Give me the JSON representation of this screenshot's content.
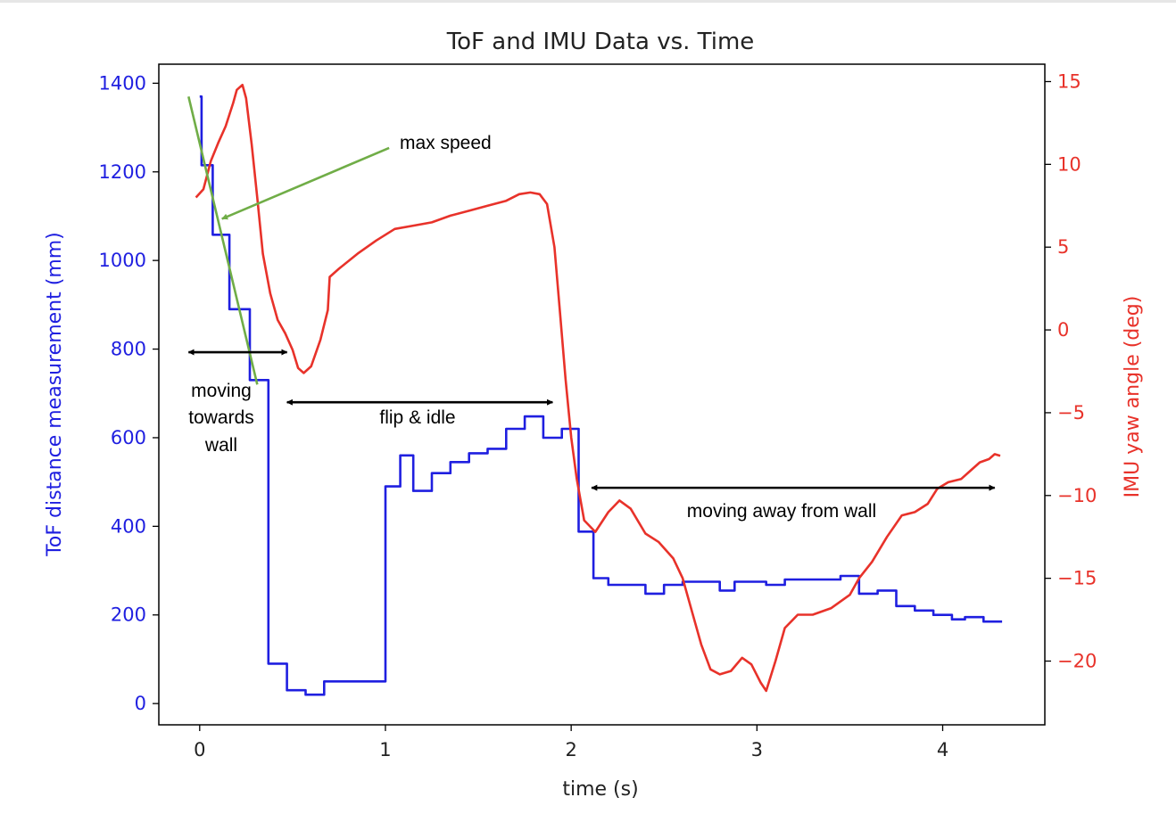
{
  "chart_data": {
    "type": "line",
    "title": "ToF and IMU Data vs. Time",
    "xlabel": "time (s)",
    "ylabel": "ToF distance measurement (mm)",
    "ylabel_right": "IMU yaw angle (deg)",
    "xlim": [
      -0.22,
      4.55
    ],
    "ylim": [
      -48,
      1443
    ],
    "ylim_right": [
      -23.85,
      16.05
    ],
    "x_ticks": [
      {
        "value": 0,
        "label": "0"
      },
      {
        "value": 1,
        "label": "1"
      },
      {
        "value": 2,
        "label": "2"
      },
      {
        "value": 3,
        "label": "3"
      },
      {
        "value": 4,
        "label": "4"
      }
    ],
    "y_ticks": [
      {
        "value": 0,
        "label": "0"
      },
      {
        "value": 200,
        "label": "200"
      },
      {
        "value": 400,
        "label": "400"
      },
      {
        "value": 600,
        "label": "600"
      },
      {
        "value": 800,
        "label": "800"
      },
      {
        "value": 1000,
        "label": "1000"
      },
      {
        "value": 1200,
        "label": "1200"
      },
      {
        "value": 1400,
        "label": "1400"
      }
    ],
    "y_ticks_right": [
      {
        "value": 15,
        "label": "15"
      },
      {
        "value": 10,
        "label": "10"
      },
      {
        "value": 5,
        "label": "5"
      },
      {
        "value": 0,
        "label": "0"
      },
      {
        "value": -5,
        "label": "−5"
      },
      {
        "value": -10,
        "label": "−10"
      },
      {
        "value": -15,
        "label": "−15"
      },
      {
        "value": -20,
        "label": "−20"
      }
    ],
    "grid": false,
    "series": [
      {
        "axis": "left",
        "color": "#1f1fe0",
        "style": "step",
        "points": [
          [
            0,
            1370
          ],
          [
            0.01,
            1215
          ],
          [
            0.07,
            1058
          ],
          [
            0.16,
            890
          ],
          [
            0.27,
            730
          ],
          [
            0.37,
            90
          ],
          [
            0.47,
            30
          ],
          [
            0.57,
            20
          ],
          [
            0.67,
            50
          ],
          [
            0.7,
            50
          ],
          [
            1.0,
            490
          ],
          [
            1.08,
            560
          ],
          [
            1.15,
            480
          ],
          [
            1.25,
            520
          ],
          [
            1.35,
            545
          ],
          [
            1.45,
            565
          ],
          [
            1.55,
            575
          ],
          [
            1.65,
            620
          ],
          [
            1.75,
            648
          ],
          [
            1.85,
            600
          ],
          [
            1.95,
            620
          ],
          [
            2.04,
            388
          ],
          [
            2.12,
            283
          ],
          [
            2.2,
            268
          ],
          [
            2.4,
            248
          ],
          [
            2.5,
            268
          ],
          [
            2.6,
            275
          ],
          [
            2.8,
            255
          ],
          [
            2.88,
            275
          ],
          [
            3.05,
            268
          ],
          [
            3.15,
            280
          ],
          [
            3.45,
            288
          ],
          [
            3.55,
            248
          ],
          [
            3.65,
            255
          ],
          [
            3.75,
            220
          ],
          [
            3.85,
            210
          ],
          [
            3.95,
            200
          ],
          [
            4.05,
            190
          ],
          [
            4.12,
            195
          ],
          [
            4.22,
            185
          ],
          [
            4.32,
            185
          ]
        ]
      },
      {
        "axis": "right",
        "color": "#e8322a",
        "style": "line",
        "points": [
          [
            -0.02,
            8.0
          ],
          [
            0.02,
            8.5
          ],
          [
            0.06,
            10.2
          ],
          [
            0.1,
            11.3
          ],
          [
            0.14,
            12.3
          ],
          [
            0.18,
            13.7
          ],
          [
            0.2,
            14.5
          ],
          [
            0.23,
            14.8
          ],
          [
            0.25,
            14.0
          ],
          [
            0.28,
            11.2
          ],
          [
            0.31,
            8.0
          ],
          [
            0.34,
            4.6
          ],
          [
            0.38,
            2.2
          ],
          [
            0.42,
            0.6
          ],
          [
            0.46,
            -0.2
          ],
          [
            0.5,
            -1.2
          ],
          [
            0.53,
            -2.3
          ],
          [
            0.56,
            -2.6
          ],
          [
            0.6,
            -2.2
          ],
          [
            0.65,
            -0.6
          ],
          [
            0.69,
            1.2
          ],
          [
            0.7,
            3.2
          ],
          [
            0.75,
            3.7
          ],
          [
            0.85,
            4.6
          ],
          [
            0.95,
            5.4
          ],
          [
            1.05,
            6.1
          ],
          [
            1.15,
            6.3
          ],
          [
            1.25,
            6.5
          ],
          [
            1.35,
            6.9
          ],
          [
            1.45,
            7.2
          ],
          [
            1.55,
            7.5
          ],
          [
            1.65,
            7.8
          ],
          [
            1.72,
            8.2
          ],
          [
            1.78,
            8.3
          ],
          [
            1.83,
            8.2
          ],
          [
            1.87,
            7.6
          ],
          [
            1.91,
            5.0
          ],
          [
            1.94,
            1.0
          ],
          [
            1.97,
            -3.0
          ],
          [
            2.0,
            -6.5
          ],
          [
            2.03,
            -9.0
          ],
          [
            2.07,
            -11.5
          ],
          [
            2.13,
            -12.2
          ],
          [
            2.2,
            -11.0
          ],
          [
            2.26,
            -10.3
          ],
          [
            2.32,
            -10.8
          ],
          [
            2.4,
            -12.3
          ],
          [
            2.47,
            -12.8
          ],
          [
            2.55,
            -13.8
          ],
          [
            2.6,
            -15.0
          ],
          [
            2.65,
            -17.0
          ],
          [
            2.7,
            -19.0
          ],
          [
            2.75,
            -20.5
          ],
          [
            2.8,
            -20.8
          ],
          [
            2.86,
            -20.6
          ],
          [
            2.92,
            -19.8
          ],
          [
            2.97,
            -20.2
          ],
          [
            3.02,
            -21.3
          ],
          [
            3.05,
            -21.8
          ],
          [
            3.1,
            -20.0
          ],
          [
            3.15,
            -18.0
          ],
          [
            3.22,
            -17.2
          ],
          [
            3.3,
            -17.2
          ],
          [
            3.4,
            -16.8
          ],
          [
            3.5,
            -16.0
          ],
          [
            3.55,
            -15.0
          ],
          [
            3.62,
            -14.0
          ],
          [
            3.7,
            -12.5
          ],
          [
            3.78,
            -11.2
          ],
          [
            3.85,
            -11.0
          ],
          [
            3.92,
            -10.5
          ],
          [
            3.97,
            -9.6
          ],
          [
            4.03,
            -9.2
          ],
          [
            4.1,
            -9.0
          ],
          [
            4.15,
            -8.5
          ],
          [
            4.2,
            -8.0
          ],
          [
            4.25,
            -7.8
          ],
          [
            4.28,
            -7.5
          ],
          [
            4.31,
            -7.6
          ]
        ]
      }
    ],
    "annotations": [
      {
        "text": "max speed",
        "color": "#70ad47",
        "line": [
          [
            -0.06,
            1370
          ],
          [
            0.31,
            720
          ]
        ],
        "arrow_from": [
          1.02,
          1254
        ],
        "arrow_to": [
          0.12,
          1094
        ]
      },
      {
        "lines": [
          "moving",
          "towards",
          "wall"
        ],
        "arrow_from": [
          -0.06,
          793
        ],
        "arrow_to": [
          0.47,
          793
        ]
      },
      {
        "text": "flip & idle",
        "arrow_from": [
          0.47,
          680
        ],
        "arrow_to": [
          1.9,
          680
        ]
      },
      {
        "text": "moving away from wall",
        "arrow_from": [
          2.11,
          487
        ],
        "arrow_to": [
          4.28,
          487
        ]
      }
    ]
  }
}
